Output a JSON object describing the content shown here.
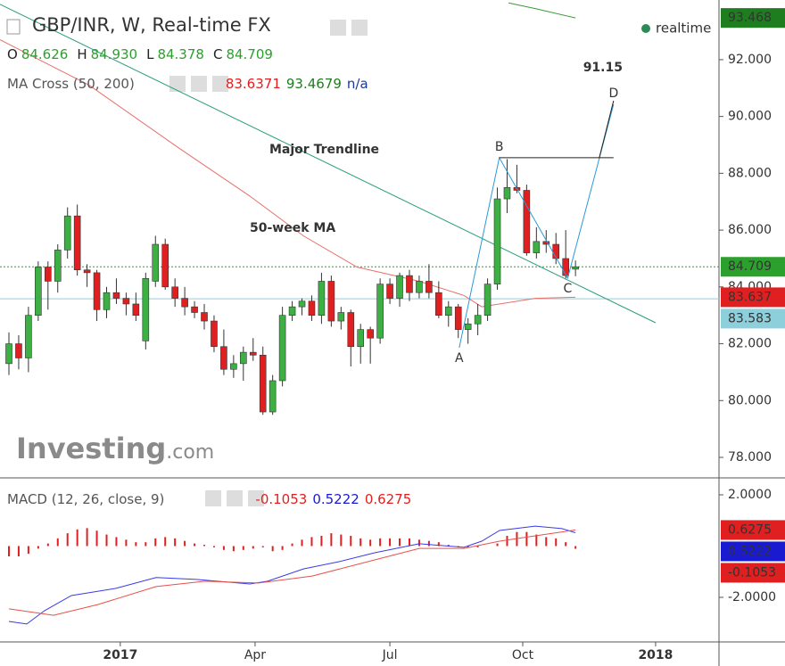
{
  "chart_data": [
    {
      "type": "candlestick",
      "title": "GBP/INR, W, Real-time FX",
      "status": "realtime",
      "status_color": "#2e8b57",
      "ohlc_header": [
        {
          "name": "O",
          "value": 84.626
        },
        {
          "name": "H",
          "value": {
            "value": 84.93,
            "label": "84.930"
          }
        },
        {
          "name": "L",
          "value": 84.378
        },
        {
          "name": "C",
          "value": 84.709
        }
      ],
      "ohlc_color": "#2ca02c",
      "indicator": {
        "title": "MA Cross (50, 200)",
        "values": [
          {
            "value": 83.6371,
            "color": "#e02020"
          },
          {
            "value": 93.4679,
            "color": "#1e7d1e"
          },
          {
            "value": "n/a",
            "color": "#1a3a9a"
          }
        ]
      },
      "logo": [
        "Investing",
        ".com"
      ],
      "up_color": "#3cb043",
      "down_color": "#e02020",
      "open": [
        81.3,
        82.0,
        81.5,
        83.0,
        84.7,
        84.2,
        85.3,
        86.5,
        84.6,
        84.5,
        83.2,
        83.8,
        83.6,
        83.4,
        82.1,
        84.2,
        85.5,
        84.0,
        83.6,
        83.3,
        83.1,
        82.8,
        81.9,
        81.1,
        81.3,
        81.7,
        81.6,
        79.6,
        80.7,
        83.0,
        83.3,
        83.5,
        83.0,
        84.2,
        82.8,
        83.1,
        81.9,
        82.5,
        82.2,
        84.1,
        83.6,
        84.4,
        83.8,
        84.2,
        83.8,
        83.0,
        83.3,
        82.5,
        82.7,
        83.0,
        84.1,
        87.1,
        87.5,
        87.4,
        85.2,
        85.6,
        85.5,
        85.0,
        84.626
      ],
      "high": [
        82.4,
        82.3,
        83.3,
        84.9,
        84.9,
        85.5,
        86.8,
        86.9,
        84.8,
        84.6,
        84.0,
        84.3,
        83.8,
        83.8,
        84.5,
        85.8,
        85.7,
        84.3,
        84.0,
        83.5,
        83.4,
        83.0,
        82.5,
        81.6,
        81.9,
        82.2,
        81.9,
        80.9,
        83.3,
        83.5,
        83.6,
        83.7,
        84.5,
        84.4,
        83.3,
        83.2,
        82.7,
        82.6,
        84.3,
        84.3,
        84.5,
        84.6,
        84.4,
        84.8,
        84.2,
        83.5,
        83.4,
        82.9,
        83.4,
        84.3,
        87.5,
        88.5,
        88.3,
        87.6,
        86.1,
        86.0,
        85.9,
        86.0,
        84.93
      ],
      "low": [
        80.9,
        81.1,
        81.0,
        82.8,
        83.2,
        83.8,
        85.0,
        84.4,
        84.0,
        82.8,
        82.9,
        83.4,
        83.0,
        82.8,
        81.8,
        84.0,
        83.9,
        83.3,
        83.0,
        82.9,
        82.5,
        81.7,
        80.9,
        80.8,
        80.7,
        81.4,
        79.5,
        79.5,
        80.5,
        82.8,
        83.0,
        82.8,
        82.7,
        82.6,
        82.5,
        81.2,
        81.3,
        81.3,
        82.0,
        83.4,
        83.3,
        83.5,
        83.6,
        83.6,
        82.9,
        82.6,
        82.2,
        82.0,
        82.3,
        82.8,
        83.9,
        86.6,
        87.3,
        85.1,
        85.0,
        85.2,
        84.8,
        84.3,
        84.378
      ],
      "close": [
        82.0,
        81.5,
        83.0,
        84.7,
        84.2,
        85.3,
        86.5,
        84.6,
        84.5,
        83.2,
        83.8,
        83.6,
        83.4,
        83.0,
        84.3,
        85.5,
        84.0,
        83.6,
        83.3,
        83.1,
        82.8,
        81.9,
        81.1,
        81.3,
        81.7,
        81.6,
        79.6,
        80.7,
        83.0,
        83.3,
        83.5,
        83.0,
        84.2,
        82.8,
        83.1,
        81.9,
        82.5,
        82.2,
        84.1,
        83.6,
        84.4,
        83.8,
        84.2,
        83.8,
        83.0,
        83.3,
        82.5,
        82.7,
        83.0,
        84.1,
        87.1,
        87.5,
        87.4,
        85.2,
        85.6,
        85.5,
        85.0,
        84.4,
        84.709
      ],
      "xlim": [
        -0.913,
        72.69
      ],
      "xticks": [
        {
          "value": 11.4,
          "label": "2017"
        },
        {
          "value": 25.2,
          "label": "Apr"
        },
        {
          "value": 39.0,
          "label": "Jul"
        },
        {
          "value": 52.6,
          "label": "Oct"
        },
        {
          "value": 66.2,
          "label": "2018"
        }
      ],
      "ylim": [
        77.31,
        94.1
      ],
      "yticks": [
        {
          "value": 78,
          "label": "78.000"
        },
        {
          "value": 80,
          "label": "80.000"
        },
        {
          "value": 82,
          "label": "82.000"
        },
        {
          "value": 84,
          "label": "84.000"
        },
        {
          "value": 86,
          "label": "86.000"
        },
        {
          "value": 88,
          "label": "88.000"
        },
        {
          "value": 90,
          "label": "90.000"
        },
        {
          "value": 92,
          "label": "92.000"
        }
      ],
      "lines": [
        {
          "color": "#e8706a",
          "x": [
            -0.913,
            8.22,
            17.35,
            24.66,
            30.14,
            35.62,
            42.01,
            46.58,
            48.4,
            53.88,
            58
          ],
          "values": [
            92.7,
            91.1,
            88.9,
            87.2,
            85.8,
            84.7,
            84.2,
            83.7,
            83.3,
            83.6,
            83.637
          ]
        },
        {
          "color": "#3a9a3a",
          "x": [
            51.14,
            53.88,
            58
          ],
          "values": [
            94.0,
            93.8,
            93.468
          ]
        },
        {
          "color": "#2a9d7f",
          "x": [
            -0.913,
            66.2
          ],
          "values": [
            93.95,
            82.74
          ]
        }
      ],
      "price_levels": [
        {
          "value": 93.468,
          "color": "#1e7d1e",
          "text_color": "#ffffff",
          "line": "none"
        },
        {
          "value": 84.709,
          "color": "#2ca02c",
          "text_color": "#ffffff",
          "line": "dotted"
        },
        {
          "value": 83.637,
          "color": "#e02020",
          "text_color": "#ffffff",
          "line": "none"
        },
        {
          "value": 83.583,
          "color": "#8ecfdc",
          "text_color": "#1a1a1a",
          "line": "solid"
        }
      ],
      "annotations": [
        "Major Trendline",
        "50-week MA"
      ],
      "pattern": {
        "color": "#2a9ad8",
        "points": [
          {
            "label": "A",
            "x": 46.1,
            "value": 81.86
          },
          {
            "label": "B",
            "x": 50.2,
            "value": 88.55
          },
          {
            "label": "C",
            "x": 57.2,
            "value": 84.31
          },
          {
            "label": "D",
            "x": 61.9,
            "value": 90.43
          }
        ],
        "target": 91.15
      }
    },
    {
      "type": "macd",
      "title": "MACD (12, 26, close, 9)",
      "readout": [
        {
          "value": -0.1053,
          "color": "#e02020"
        },
        {
          "value": 0.5222,
          "color": "#1a1ad0"
        },
        {
          "value": 0.6275,
          "color": "#e02020"
        }
      ],
      "histogram": {
        "color": "#e02020",
        "values": [
          -0.4,
          -0.4,
          -0.3,
          -0.1,
          0.1,
          0.3,
          0.5,
          0.65,
          0.7,
          0.6,
          0.45,
          0.35,
          0.25,
          0.15,
          0.15,
          0.3,
          0.35,
          0.3,
          0.2,
          0.1,
          0.05,
          -0.05,
          -0.15,
          -0.2,
          -0.15,
          -0.1,
          -0.05,
          -0.2,
          -0.15,
          0.1,
          0.25,
          0.35,
          0.4,
          0.5,
          0.45,
          0.4,
          0.3,
          0.25,
          0.3,
          0.3,
          0.3,
          0.3,
          0.25,
          0.2,
          0.15,
          0.05,
          -0.05,
          -0.05,
          -0.05,
          0.0,
          0.1,
          0.4,
          0.55,
          0.55,
          0.45,
          0.35,
          0.3,
          0.15,
          -0.1053
        ]
      },
      "lines": [
        {
          "color": "#3a3ae8",
          "x": [
            0,
            1.83,
            3.65,
            6.39,
            10.96,
            15.07,
            19.18,
            24.66,
            26.48,
            30.14,
            33.79,
            37.44,
            42.01,
            46.58,
            48.4,
            50.23,
            53.88,
            56.62,
            58
          ],
          "values": [
            -2.94,
            -3.04,
            -2.52,
            -1.93,
            -1.65,
            -1.23,
            -1.3,
            -1.48,
            -1.37,
            -0.89,
            -0.61,
            -0.26,
            0.09,
            -0.05,
            0.19,
            0.61,
            0.78,
            0.68,
            0.5222
          ]
        },
        {
          "color": "#e8504a",
          "x": [
            0,
            4.57,
            9.13,
            15.07,
            20.09,
            25.57,
            31.05,
            37.44,
            42.01,
            46.58,
            50.23,
            53.88,
            58
          ],
          "values": [
            -2.45,
            -2.7,
            -2.28,
            -1.58,
            -1.37,
            -1.44,
            -1.17,
            -0.54,
            -0.09,
            -0.09,
            0.19,
            0.4,
            0.6275
          ]
        }
      ],
      "ylim": [
        -3.74,
        2.626
      ],
      "yticks": [
        {
          "value": -2,
          "label": "-2.0000"
        },
        {
          "value": 2,
          "label": "2.0000"
        }
      ]
    }
  ]
}
